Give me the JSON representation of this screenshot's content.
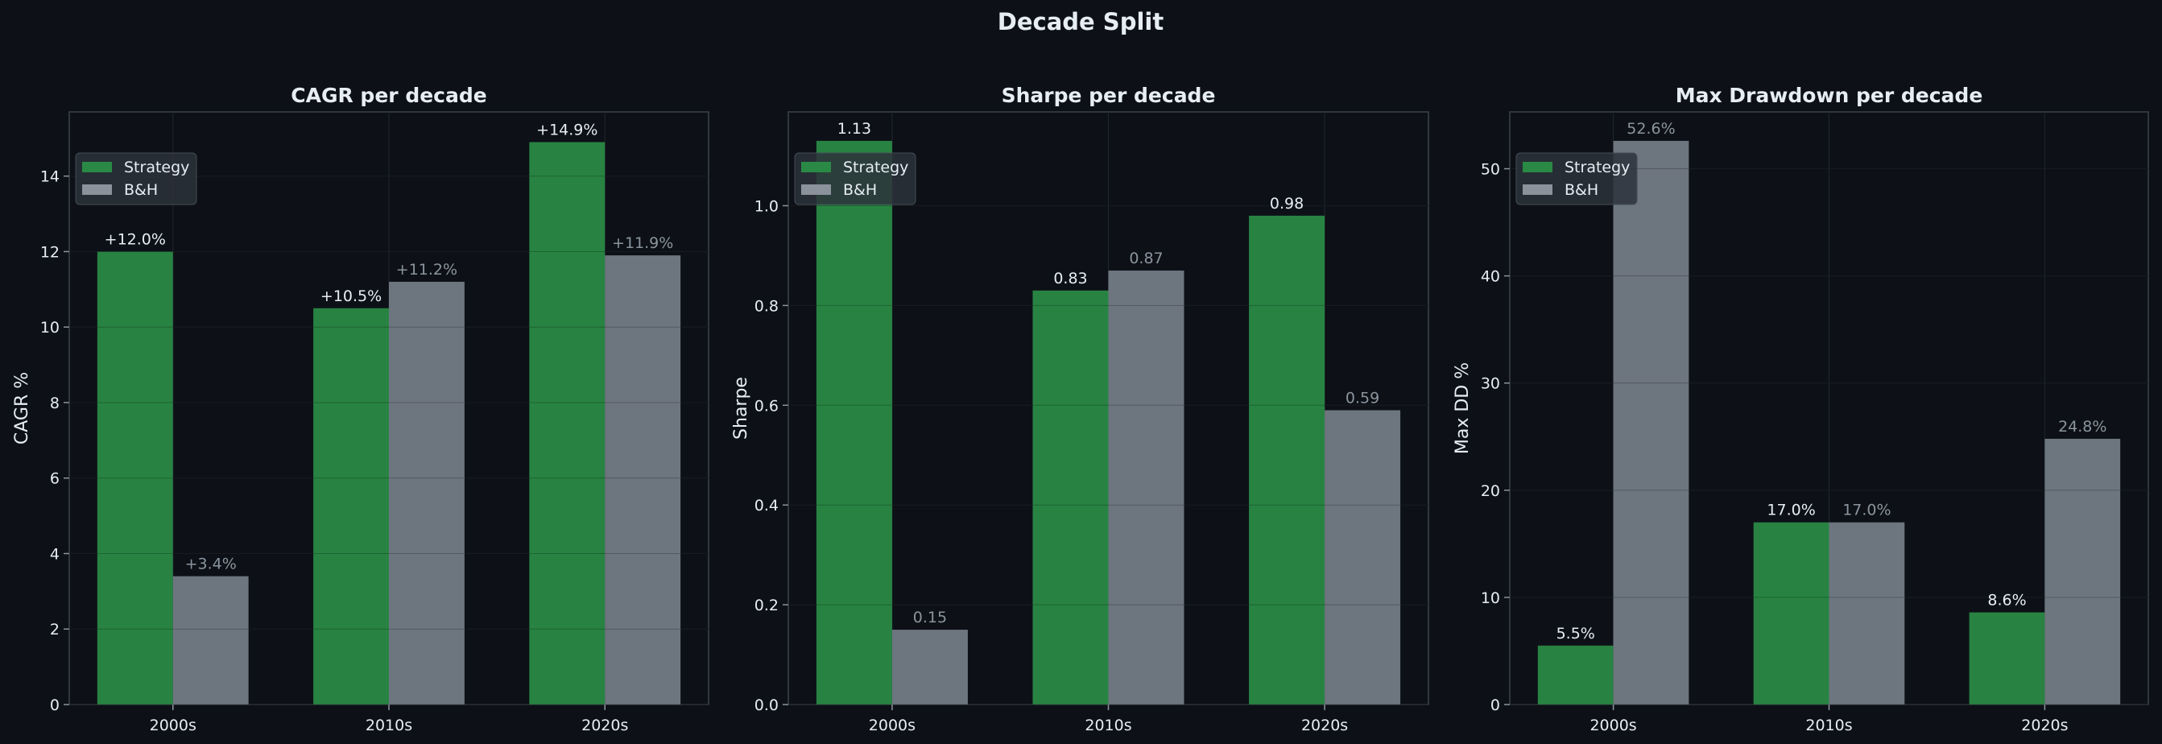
{
  "colors": {
    "background": "#0d1117",
    "strategy": "#2a8a45",
    "bh": "#737b85",
    "text": "#e6edf3",
    "muted": "#8b949e",
    "grid": "#30363d"
  },
  "chart_data": {
    "title": "Decade Split",
    "panels": [
      {
        "type": "bar",
        "title": "CAGR per decade",
        "ylabel": "CAGR %",
        "categories": [
          "2000s",
          "2010s",
          "2020s"
        ],
        "ylim": [
          0,
          15.7
        ],
        "yticks": [
          0,
          2,
          4,
          6,
          8,
          10,
          12,
          14
        ],
        "ytick_labels": [
          "0",
          "2",
          "4",
          "6",
          "8",
          "10",
          "12",
          "14"
        ],
        "legend": "top-left",
        "series": [
          {
            "name": "Strategy",
            "values": [
              12.0,
              10.5,
              14.9
            ],
            "labels": [
              "+12.0%",
              "+10.5%",
              "+14.9%"
            ]
          },
          {
            "name": "B&H",
            "values": [
              3.4,
              11.2,
              11.9
            ],
            "labels": [
              "+3.4%",
              "+11.2%",
              "+11.9%"
            ]
          }
        ]
      },
      {
        "type": "bar",
        "title": "Sharpe per decade",
        "ylabel": "Sharpe",
        "categories": [
          "2000s",
          "2010s",
          "2020s"
        ],
        "ylim": [
          0,
          1.188
        ],
        "yticks": [
          0,
          0.2,
          0.4,
          0.6,
          0.8,
          1.0
        ],
        "ytick_labels": [
          "0.0",
          "0.2",
          "0.4",
          "0.6",
          "0.8",
          "1.0"
        ],
        "legend": "top-left",
        "series": [
          {
            "name": "Strategy",
            "values": [
              1.13,
              0.83,
              0.98
            ],
            "labels": [
              "1.13",
              "0.83",
              "0.98"
            ]
          },
          {
            "name": "B&H",
            "values": [
              0.15,
              0.87,
              0.59
            ],
            "labels": [
              "0.15",
              "0.87",
              "0.59"
            ]
          }
        ]
      },
      {
        "type": "bar",
        "title": "Max Drawdown per decade",
        "ylabel": "Max DD %",
        "categories": [
          "2000s",
          "2010s",
          "2020s"
        ],
        "ylim": [
          0,
          55.3
        ],
        "yticks": [
          0,
          10,
          20,
          30,
          40,
          50
        ],
        "ytick_labels": [
          "0",
          "10",
          "20",
          "30",
          "40",
          "50"
        ],
        "legend": "top-left",
        "series": [
          {
            "name": "Strategy",
            "values": [
              5.5,
              17.0,
              8.6
            ],
            "labels": [
              "5.5%",
              "17.0%",
              "8.6%"
            ]
          },
          {
            "name": "B&H",
            "values": [
              52.6,
              17.0,
              24.8
            ],
            "labels": [
              "52.6%",
              "17.0%",
              "24.8%"
            ]
          }
        ]
      }
    ]
  }
}
